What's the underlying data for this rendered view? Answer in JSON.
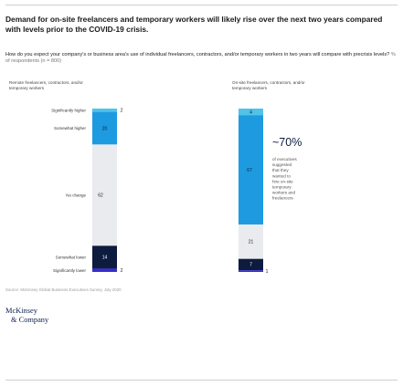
{
  "header": {
    "title": "Demand for on-site freelancers and temporary workers will likely rise over the next two years compared with levels prior to the COVID-19 crisis.",
    "question": "How do you expect your company's or business area's use of individual freelancers, contractors, and/or temporary workers in two years will compare with precrisis levels?",
    "note": "% of respondents (n = 800)"
  },
  "chart_data": [
    {
      "type": "bar",
      "stacked": true,
      "title": "Remote freelancers, contractors, and/or temporary workers",
      "categories": [
        "Significantly higher",
        "Somewhat higher",
        "No change",
        "Somewhat lower",
        "Significantly lower"
      ],
      "values": [
        2,
        20,
        62,
        14,
        2
      ],
      "value_labels": [
        "2",
        "20",
        "62",
        "14",
        "2"
      ]
    },
    {
      "type": "bar",
      "stacked": true,
      "title": "On-site freelancers, contractors, and/or temporary workers",
      "categories": [
        "Significantly higher",
        "Somewhat higher",
        "No change",
        "Somewhat lower",
        "Significantly lower"
      ],
      "values": [
        4,
        67,
        21,
        7,
        1
      ],
      "value_labels": [
        "4",
        "67",
        "21",
        "7",
        "1"
      ]
    }
  ],
  "callout": {
    "value": "~70%",
    "text": [
      "of executives",
      "suggested",
      "that they",
      "wanted to",
      "hire on-site",
      "temporary",
      "workers and",
      "freelancers"
    ]
  },
  "colors": {
    "significantly_higher": "#4fc3e8",
    "somewhat_higher": "#1e9be0",
    "no_change": "#e9ebee",
    "somewhat_lower": "#0d1b3e",
    "significantly_lower": "#3b2ad6"
  },
  "footer": {
    "source": "Source: McKinsey Global Business Executives Survey, July 2020",
    "logo_line1": "McKinsey",
    "logo_line2": "& Company"
  }
}
